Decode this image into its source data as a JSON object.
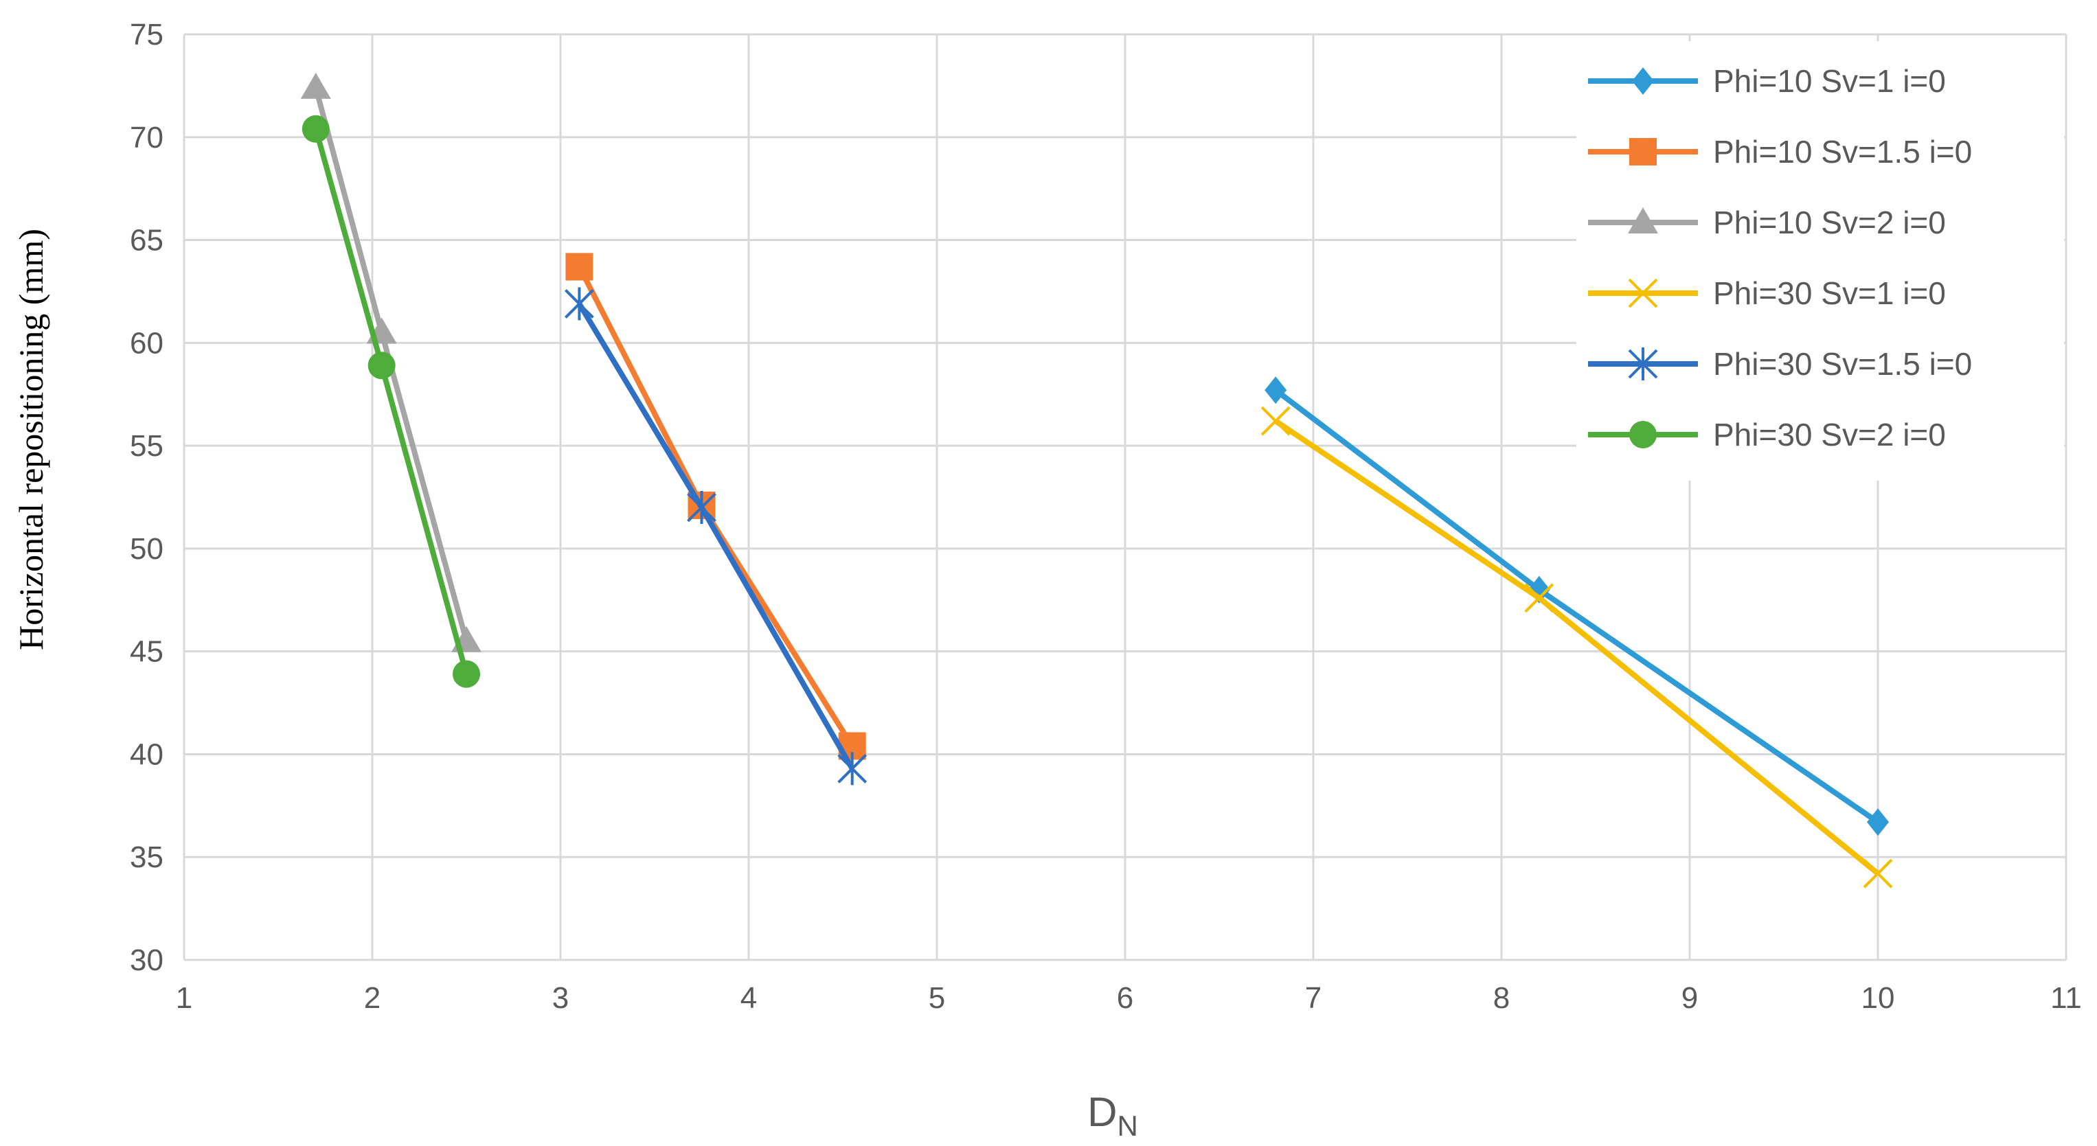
{
  "chart_data": {
    "type": "line",
    "title": "",
    "xlabel": "D",
    "xlabel_subscript": "N",
    "ylabel": "Horizontal repositioning (mm)",
    "xlim": [
      1,
      11
    ],
    "ylim": [
      30,
      75
    ],
    "xticks": [
      1,
      2,
      3,
      4,
      5,
      6,
      7,
      8,
      9,
      10,
      11
    ],
    "yticks": [
      30,
      35,
      40,
      45,
      50,
      55,
      60,
      65,
      70,
      75
    ],
    "grid": true,
    "legend_position": "top-right",
    "series": [
      {
        "name": "Phi=10 Sv=1 i=0",
        "color": "#2e9bd6",
        "marker": "diamond",
        "x": [
          6.8,
          8.2,
          10.0
        ],
        "y": [
          57.7,
          48.0,
          36.7
        ]
      },
      {
        "name": "Phi=10 Sv=1.5 i=0",
        "color": "#f47c30",
        "marker": "square",
        "x": [
          3.1,
          3.75,
          4.55
        ],
        "y": [
          63.7,
          52.1,
          40.4
        ]
      },
      {
        "name": "Phi=10 Sv=2 i=0",
        "color": "#a5a5a5",
        "marker": "triangle",
        "x": [
          1.7,
          2.05,
          2.5
        ],
        "y": [
          72.4,
          60.5,
          45.5
        ]
      },
      {
        "name": "Phi=30 Sv=1 i=0",
        "color": "#f5be00",
        "marker": "x",
        "x": [
          6.8,
          8.2,
          10.0
        ],
        "y": [
          56.2,
          47.6,
          34.2
        ]
      },
      {
        "name": "Phi=30 Sv=1.5 i=0",
        "color": "#2f6fc4",
        "marker": "star",
        "x": [
          3.1,
          3.75,
          4.55
        ],
        "y": [
          61.9,
          52.0,
          39.3
        ]
      },
      {
        "name": "Phi=30 Sv=2 i=0",
        "color": "#4ead3a",
        "marker": "circle",
        "x": [
          1.7,
          2.05,
          2.5
        ],
        "y": [
          70.4,
          58.9,
          43.9
        ]
      }
    ]
  }
}
